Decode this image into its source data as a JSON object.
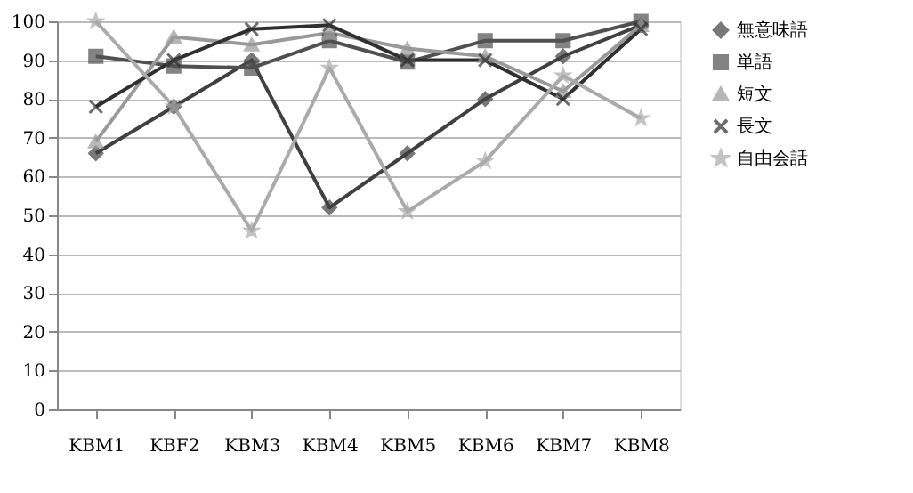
{
  "chart_data": {
    "type": "line",
    "categories": [
      "KBM1",
      "KBF2",
      "KBM3",
      "KBM4",
      "KBM5",
      "KBM6",
      "KBM7",
      "KBM8"
    ],
    "series": [
      {
        "name": "無意味語",
        "color": "#404040",
        "marker": "diamond",
        "values": [
          66,
          78,
          90,
          52,
          66,
          80,
          91,
          99
        ]
      },
      {
        "name": "単語",
        "color": "#505050",
        "marker": "square",
        "values": [
          91,
          88.5,
          88,
          95,
          89.5,
          95,
          95,
          100
        ]
      },
      {
        "name": "短文",
        "color": "#999999",
        "marker": "triangle",
        "values": [
          69,
          96,
          94,
          97,
          93,
          91,
          82,
          99
        ]
      },
      {
        "name": "長文",
        "color": "#303030",
        "marker": "cross",
        "values": [
          78,
          90,
          98,
          99,
          90,
          90,
          80,
          98
        ]
      },
      {
        "name": "自由会話",
        "color": "#aaaaaa",
        "marker": "star",
        "values": [
          100,
          78,
          46,
          88,
          51,
          64,
          86,
          75
        ]
      }
    ],
    "ylim": [
      0,
      100
    ],
    "yticks": [
      0,
      10,
      20,
      30,
      40,
      50,
      60,
      70,
      80,
      90,
      100
    ],
    "grid": "y",
    "legend": "right",
    "line_style": "solid"
  }
}
